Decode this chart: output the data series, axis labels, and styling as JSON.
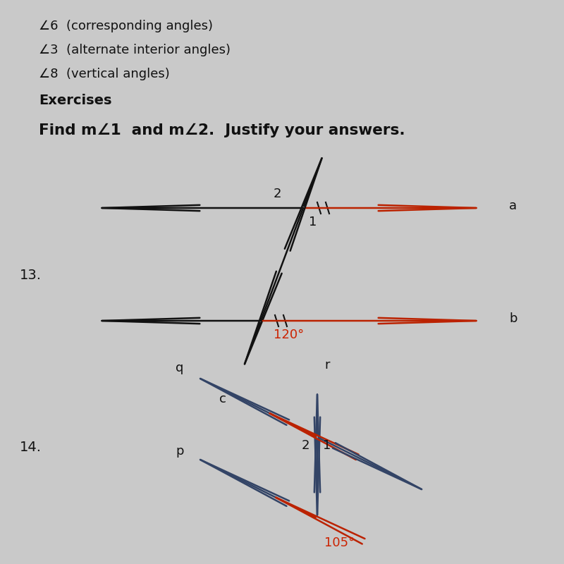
{
  "background_color": "#c9c9c9",
  "line_color": "#111111",
  "arrow_color": "#bb2200",
  "angle_color": "#cc2200",
  "line14_color": "#334466",
  "header_lines": [
    "∠6  (corresponding angles)",
    "∠3  (alternate interior angles)",
    "∠8  (vertical angles)"
  ],
  "exercises_label": "Exercises",
  "title_text": "Find m∠1  and m∠2.  Justify your answers.",
  "ex13_label": "13.",
  "ex14_label": "14.",
  "angle13_text": "120°",
  "angle14_text": "105°",
  "label_a": "a",
  "label_b": "b",
  "label_c": "c",
  "label_q": "q",
  "label_r": "r",
  "label_p": "p"
}
